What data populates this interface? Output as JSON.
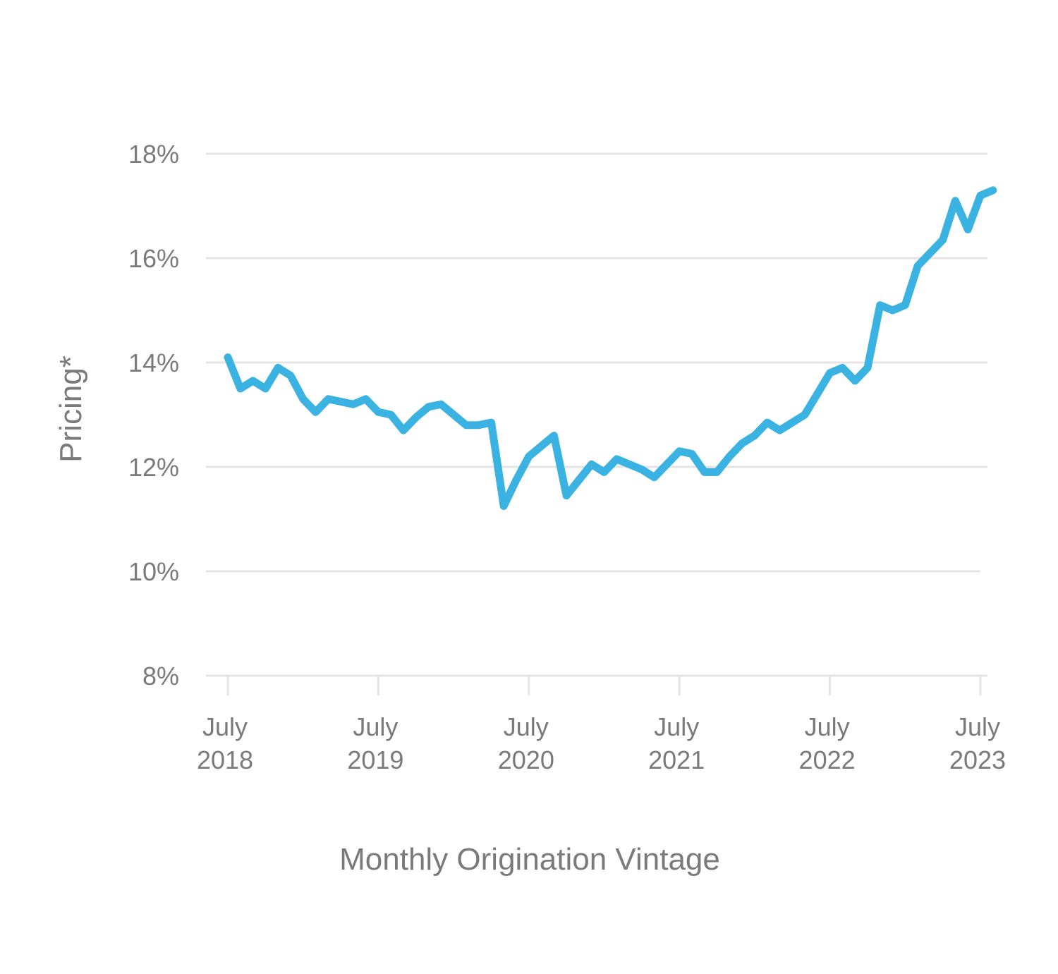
{
  "chart_data": {
    "type": "line",
    "title": "",
    "xlabel": "Monthly Origination Vintage",
    "ylabel": "Pricing*",
    "ylim": [
      8,
      18
    ],
    "y_ticks": [
      "8%",
      "10%",
      "12%",
      "14%",
      "16%",
      "18%"
    ],
    "y_tick_values": [
      8,
      10,
      12,
      14,
      16,
      18
    ],
    "x_ticks": [
      {
        "month": "July",
        "year": "2018",
        "t": 0
      },
      {
        "month": "July",
        "year": "2019",
        "t": 12
      },
      {
        "month": "July",
        "year": "2020",
        "t": 24
      },
      {
        "month": "July",
        "year": "2021",
        "t": 36
      },
      {
        "month": "July",
        "year": "2022",
        "t": 48
      },
      {
        "month": "July",
        "year": "2023",
        "t": 60
      }
    ],
    "grid": true,
    "line_color": "#3ab3e2",
    "series": [
      {
        "x": [
          "2018-07",
          "2018-08",
          "2018-09",
          "2018-10",
          "2018-11",
          "2018-12",
          "2019-01",
          "2019-02",
          "2019-03",
          "2019-04",
          "2019-05",
          "2019-06",
          "2019-07",
          "2019-08",
          "2019-09",
          "2019-10",
          "2019-11",
          "2019-12",
          "2020-01",
          "2020-02",
          "2020-03",
          "2020-04",
          "2020-05",
          "2020-06",
          "2020-07",
          "2020-08",
          "2020-09",
          "2020-10",
          "2020-11",
          "2020-12",
          "2021-01",
          "2021-02",
          "2021-03",
          "2021-04",
          "2021-05",
          "2021-06",
          "2021-07",
          "2021-08",
          "2021-09",
          "2021-10",
          "2021-11",
          "2021-12",
          "2022-01",
          "2022-02",
          "2022-03",
          "2022-04",
          "2022-05",
          "2022-06",
          "2022-07",
          "2022-08",
          "2022-09",
          "2022-10",
          "2022-11",
          "2022-12",
          "2023-01",
          "2023-02",
          "2023-03",
          "2023-04",
          "2023-05",
          "2023-06",
          "2023-07",
          "2023-08"
        ],
        "values": [
          14.1,
          13.5,
          13.65,
          13.5,
          13.9,
          13.75,
          13.3,
          13.05,
          13.3,
          13.25,
          13.2,
          13.3,
          13.05,
          13.0,
          12.7,
          12.95,
          13.15,
          13.2,
          13.0,
          12.8,
          12.8,
          12.85,
          11.25,
          11.75,
          12.2,
          12.4,
          12.6,
          11.45,
          11.75,
          12.05,
          11.9,
          12.15,
          12.05,
          11.95,
          11.8,
          12.05,
          12.3,
          12.25,
          11.9,
          11.9,
          12.2,
          12.45,
          12.6,
          12.85,
          12.7,
          12.85,
          13.0,
          13.4,
          13.8,
          13.9,
          13.65,
          13.9,
          15.1,
          15.0,
          15.1,
          15.85,
          16.1,
          16.35,
          17.1,
          16.55,
          17.2,
          17.3
        ]
      }
    ]
  }
}
